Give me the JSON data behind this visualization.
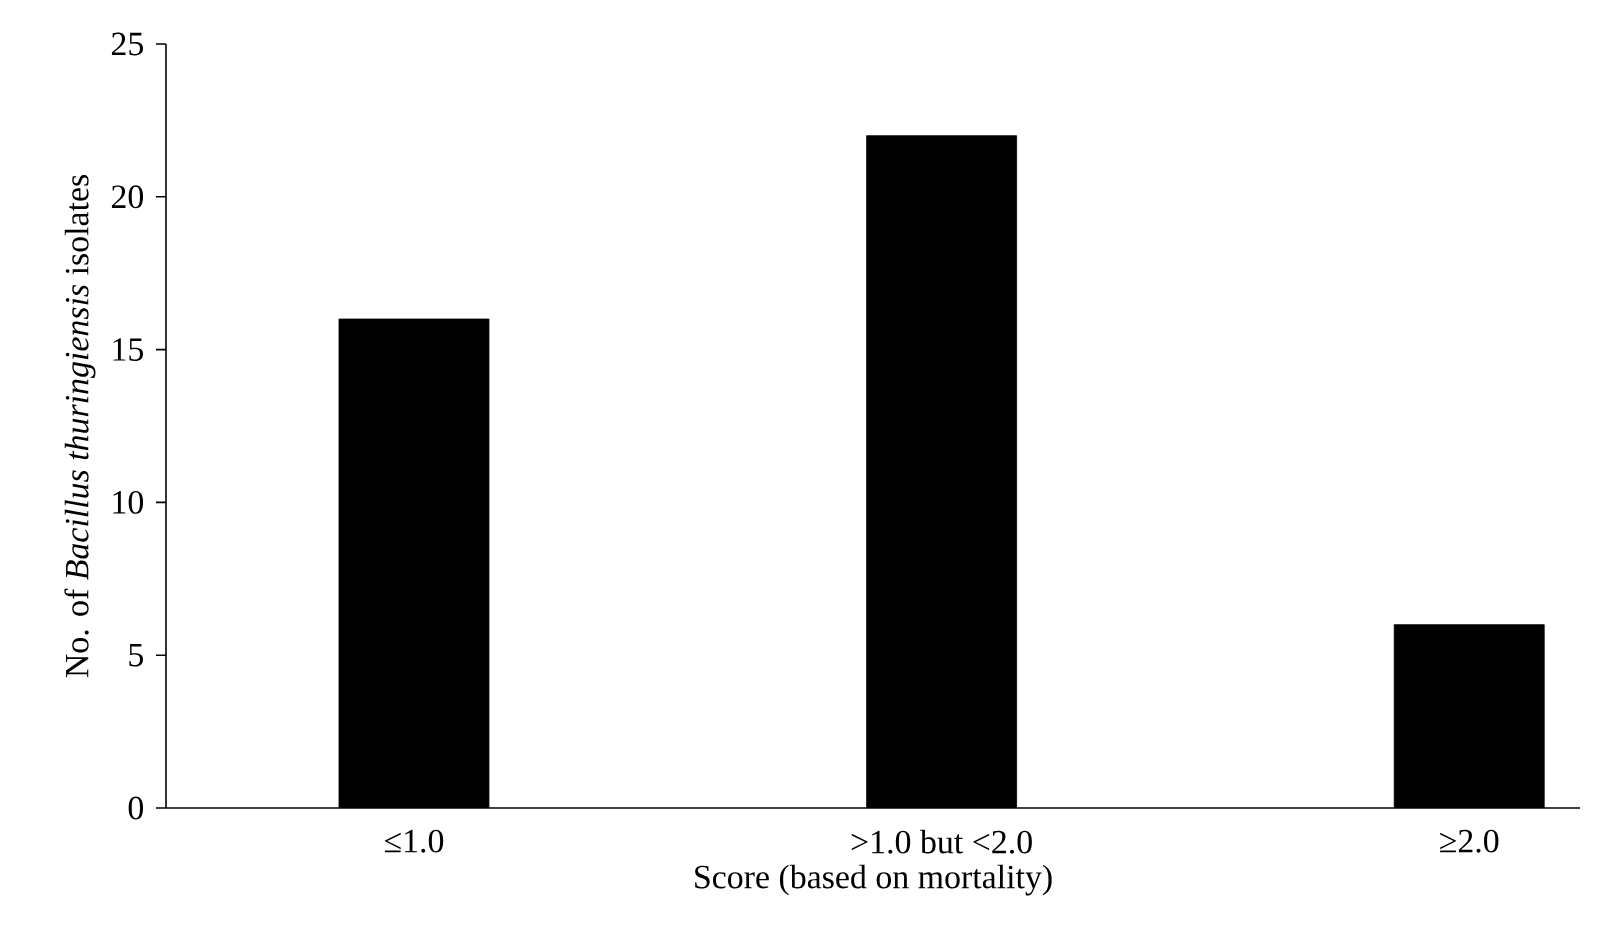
{
  "chart_data": {
    "type": "bar",
    "xlabel": "Score (based on mortality)",
    "ylabel": "No. of *Bacillus thuringiensis* isolates",
    "categories": [
      "≤1.0",
      ">1.0 but <2.0",
      "≥2.0"
    ],
    "values": [
      16,
      22,
      6
    ],
    "color": "#000000",
    "ylim": [
      0,
      25
    ],
    "yticks": [
      0,
      5,
      10,
      15,
      20,
      25
    ],
    "grid": false
  }
}
